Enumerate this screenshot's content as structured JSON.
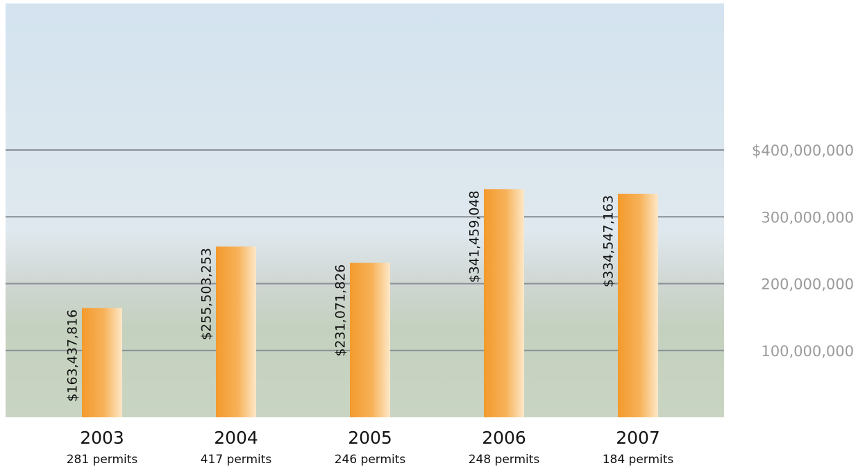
{
  "chart_data": {
    "type": "bar",
    "categories": [
      "2003",
      "2004",
      "2005",
      "2006",
      "2007"
    ],
    "category_sublabels": [
      "281 permits",
      "417 permits",
      "246 permits",
      "248 permits",
      "184 permits"
    ],
    "values": [
      163437816,
      255503253,
      231071826,
      341459048,
      334547163
    ],
    "value_labels": [
      "$163,437,816",
      "$255,503,253",
      "$231,071,826",
      "$341,459,048",
      "$334,547,163"
    ],
    "color": "#f39a2c",
    "ylim": [
      0,
      400000000
    ],
    "yticks": [
      {
        "value": 100000000,
        "label": "100,000,000"
      },
      {
        "value": 200000000,
        "label": "200,000,000"
      },
      {
        "value": 300000000,
        "label": "300,000,000"
      },
      {
        "value": 400000000,
        "label": "$400,000,000"
      }
    ],
    "grid": true
  }
}
